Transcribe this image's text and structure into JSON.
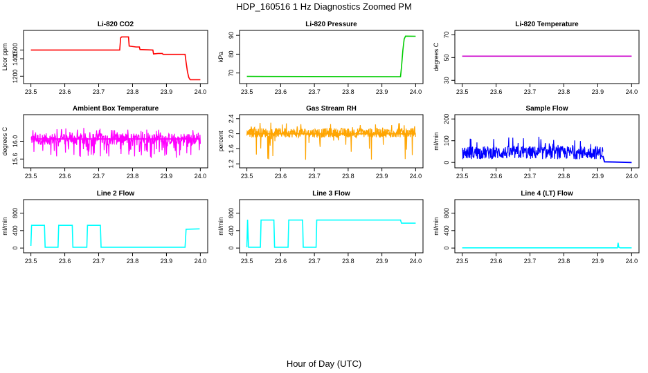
{
  "figure": {
    "title": "HDP_160516  1 Hz Diagnostics Zoomed PM",
    "xlabel": "Hour of Day (UTC)"
  },
  "chart_data": [
    {
      "type": "line",
      "title": "Li-820 CO2",
      "ylabel": "Licor ppm",
      "color": "#ff0000",
      "xlim": [
        23.5,
        24.0
      ],
      "ylim": [
        1140,
        1700
      ],
      "xticks": [
        "23.5",
        "23.6",
        "23.7",
        "23.8",
        "23.9",
        "24.0"
      ],
      "yticks": [
        "1200",
        "1400",
        "1500"
      ],
      "points": [
        [
          23.5,
          1500
        ],
        [
          23.762,
          1500
        ],
        [
          23.765,
          1640
        ],
        [
          23.768,
          1650
        ],
        [
          23.788,
          1650
        ],
        [
          23.79,
          1545
        ],
        [
          23.81,
          1535
        ],
        [
          23.82,
          1535
        ],
        [
          23.822,
          1505
        ],
        [
          23.86,
          1500
        ],
        [
          23.862,
          1455
        ],
        [
          23.875,
          1460
        ],
        [
          23.888,
          1460
        ],
        [
          23.89,
          1450
        ],
        [
          23.93,
          1450
        ],
        [
          23.955,
          1450
        ],
        [
          23.958,
          1360
        ],
        [
          23.962,
          1250
        ],
        [
          23.966,
          1185
        ],
        [
          23.97,
          1160
        ],
        [
          24.0,
          1160
        ]
      ]
    },
    {
      "type": "line",
      "title": "Li-820 Pressure",
      "ylabel": "kPa",
      "color": "#00cc00",
      "xlim": [
        23.5,
        24.0
      ],
      "ylim": [
        65.5,
        91.5
      ],
      "xticks": [
        "23.5",
        "23.6",
        "23.7",
        "23.8",
        "23.9",
        "24.0"
      ],
      "yticks": [
        "70",
        "80",
        "90"
      ],
      "points": [
        [
          23.5,
          68.2
        ],
        [
          23.955,
          68.0
        ],
        [
          23.958,
          73
        ],
        [
          23.962,
          82
        ],
        [
          23.966,
          88
        ],
        [
          23.97,
          89.6
        ],
        [
          24.0,
          89.5
        ]
      ]
    },
    {
      "type": "line",
      "title": "Li-820 Temperature",
      "ylabel": "degrees C",
      "color": "#cc00cc",
      "xlim": [
        23.5,
        24.0
      ],
      "ylim": [
        29,
        72
      ],
      "xticks": [
        "23.5",
        "23.6",
        "23.7",
        "23.8",
        "23.9",
        "24.0"
      ],
      "yticks": [
        "30",
        "50",
        "70"
      ],
      "points": [
        [
          23.5,
          51.2
        ],
        [
          24.0,
          51.2
        ]
      ]
    },
    {
      "type": "line",
      "title": "Ambient Box Temperature",
      "ylabel": "degrees C",
      "color": "#ff00ff",
      "xlim": [
        23.5,
        24.0
      ],
      "ylim": [
        15.45,
        16.55
      ],
      "xticks": [
        "23.5",
        "23.6",
        "23.7",
        "23.8",
        "23.9",
        "24.0"
      ],
      "yticks": [
        "15.6",
        "16.0"
      ],
      "noise": {
        "low": 15.92,
        "high": 16.18,
        "dipTo": 15.62,
        "spikeTo": 16.3,
        "dipProb": 0.12,
        "spikeProb": 0.08,
        "n": 500
      },
      "points": [
        [
          23.5,
          16.05
        ],
        [
          24.0,
          16.05
        ]
      ]
    },
    {
      "type": "line",
      "title": "Gas Stream RH",
      "ylabel": "percent",
      "color": "#ffa500",
      "xlim": [
        23.5,
        24.0
      ],
      "ylim": [
        1.15,
        2.45
      ],
      "xticks": [
        "23.5",
        "23.6",
        "23.7",
        "23.8",
        "23.9",
        "24.0"
      ],
      "yticks": [
        "1.2",
        "1.6",
        "2.0",
        "2.4"
      ],
      "noise": {
        "low": 1.9,
        "high": 2.15,
        "dipTo": 1.3,
        "spikeTo": 2.3,
        "dipProb": 0.05,
        "spikeProb": 0.05,
        "n": 500
      },
      "points": [
        [
          23.5,
          2.0
        ],
        [
          24.0,
          2.0
        ]
      ]
    },
    {
      "type": "line",
      "title": "Sample Flow",
      "ylabel": "ml/min",
      "color": "#0000ff",
      "xlim": [
        23.5,
        24.0
      ],
      "ylim": [
        -15,
        210
      ],
      "xticks": [
        "23.5",
        "23.6",
        "23.7",
        "23.8",
        "23.9",
        "24.0"
      ],
      "yticks": [
        "0",
        "100",
        "200"
      ],
      "noise": {
        "low": 15,
        "high": 75,
        "dipTo": 10,
        "spikeTo": 120,
        "dipProb": 0.0,
        "spikeProb": 0.06,
        "n": 420,
        "xEnd": 23.915
      },
      "points": [
        [
          23.915,
          30
        ],
        [
          23.92,
          3
        ],
        [
          24.0,
          0
        ]
      ]
    },
    {
      "type": "line",
      "title": "Line 2 Flow",
      "ylabel": "ml/min",
      "color": "#00ffff",
      "xlim": [
        23.5,
        24.0
      ],
      "ylim": [
        -60,
        1060
      ],
      "xticks": [
        "23.5",
        "23.6",
        "23.7",
        "23.8",
        "23.9",
        "24.0"
      ],
      "yticks": [
        "0",
        "400",
        "800"
      ],
      "points": [
        [
          23.5,
          50
        ],
        [
          23.502,
          520
        ],
        [
          23.54,
          520
        ],
        [
          23.542,
          20
        ],
        [
          23.58,
          20
        ],
        [
          23.582,
          520
        ],
        [
          23.622,
          520
        ],
        [
          23.624,
          20
        ],
        [
          23.665,
          20
        ],
        [
          23.667,
          520
        ],
        [
          23.705,
          520
        ],
        [
          23.707,
          20
        ],
        [
          23.955,
          20
        ],
        [
          23.958,
          430
        ],
        [
          23.998,
          440
        ]
      ]
    },
    {
      "type": "line",
      "title": "Line 3 Flow",
      "ylabel": "ml/min",
      "color": "#00ffff",
      "xlim": [
        23.5,
        24.0
      ],
      "ylim": [
        -60,
        1060
      ],
      "xticks": [
        "23.5",
        "23.6",
        "23.7",
        "23.8",
        "23.9",
        "24.0"
      ],
      "yticks": [
        "0",
        "400",
        "800"
      ],
      "points": [
        [
          23.5,
          20
        ],
        [
          23.502,
          650
        ],
        [
          23.505,
          20
        ],
        [
          23.54,
          20
        ],
        [
          23.542,
          640
        ],
        [
          23.58,
          640
        ],
        [
          23.582,
          20
        ],
        [
          23.622,
          20
        ],
        [
          23.624,
          640
        ],
        [
          23.665,
          640
        ],
        [
          23.667,
          20
        ],
        [
          23.705,
          20
        ],
        [
          23.707,
          640
        ],
        [
          23.955,
          640
        ],
        [
          23.958,
          570
        ],
        [
          24.0,
          570
        ]
      ]
    },
    {
      "type": "line",
      "title": "Line 4 (LT) Flow",
      "ylabel": "ml/min",
      "color": "#00ffff",
      "xlim": [
        23.5,
        24.0
      ],
      "ylim": [
        -60,
        1060
      ],
      "xticks": [
        "23.5",
        "23.6",
        "23.7",
        "23.8",
        "23.9",
        "24.0"
      ],
      "yticks": [
        "0",
        "400",
        "800"
      ],
      "points": [
        [
          23.5,
          5
        ],
        [
          23.958,
          5
        ],
        [
          23.96,
          120
        ],
        [
          23.962,
          20
        ],
        [
          23.966,
          5
        ],
        [
          24.0,
          5
        ]
      ]
    }
  ]
}
